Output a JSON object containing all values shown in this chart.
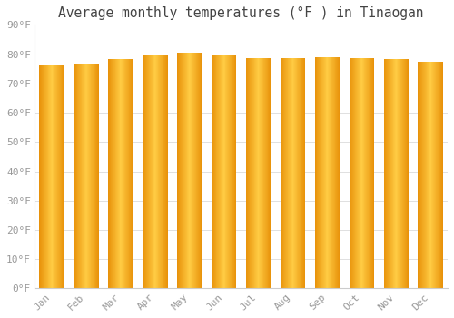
{
  "title": "Average monthly temperatures (°F ) in Tinaogan",
  "months": [
    "Jan",
    "Feb",
    "Mar",
    "Apr",
    "May",
    "Jun",
    "Jul",
    "Aug",
    "Sep",
    "Oct",
    "Nov",
    "Dec"
  ],
  "values": [
    76.5,
    76.8,
    78.3,
    79.7,
    80.4,
    79.7,
    78.6,
    78.5,
    78.8,
    78.7,
    78.3,
    77.4
  ],
  "bar_color_left": "#E8920A",
  "bar_color_center": "#FFCC44",
  "bar_color_right": "#E8920A",
  "background_color": "#FFFFFF",
  "plot_bg_color": "#FFFFFF",
  "grid_color": "#E0E0E0",
  "tick_label_color": "#999999",
  "title_color": "#444444",
  "ylim": [
    0,
    90
  ],
  "yticks": [
    0,
    10,
    20,
    30,
    40,
    50,
    60,
    70,
    80,
    90
  ],
  "ytick_labels": [
    "0°F",
    "10°F",
    "20°F",
    "30°F",
    "40°F",
    "50°F",
    "60°F",
    "70°F",
    "80°F",
    "90°F"
  ],
  "title_fontsize": 10.5,
  "tick_fontsize": 8,
  "font_family": "monospace",
  "bar_width": 0.72,
  "figsize": [
    5.0,
    3.5
  ],
  "dpi": 100
}
